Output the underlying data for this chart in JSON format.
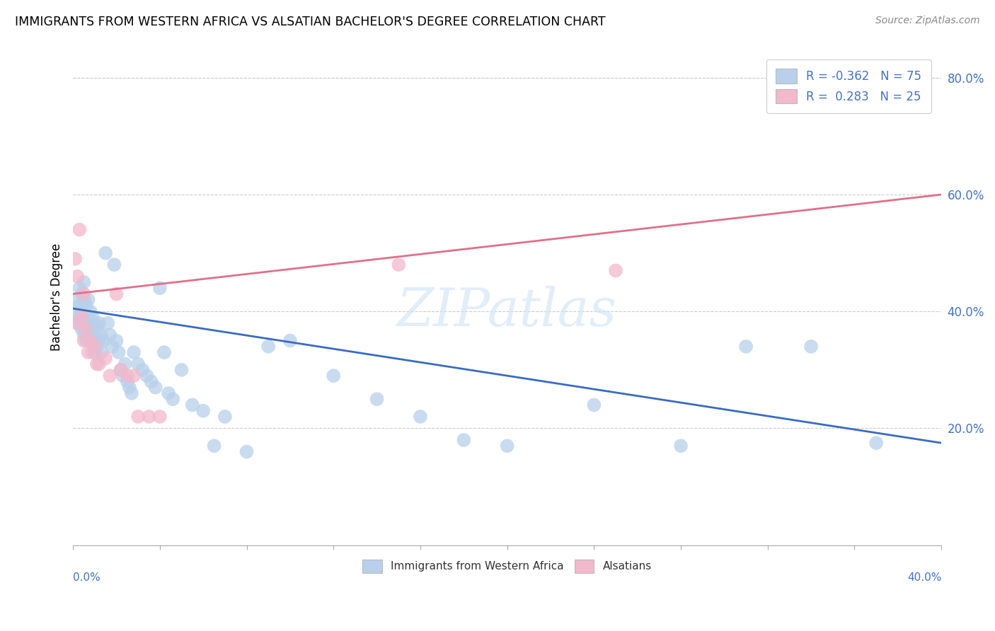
{
  "title": "IMMIGRANTS FROM WESTERN AFRICA VS ALSATIAN BACHELOR'S DEGREE CORRELATION CHART",
  "source": "Source: ZipAtlas.com",
  "ylabel": "Bachelor's Degree",
  "legend_line1": "R = -0.362   N = 75",
  "legend_line2": "R =  0.283   N = 25",
  "blue_color": "#b8d0ea",
  "pink_color": "#f2b8cb",
  "blue_line_color": "#3a6bbf",
  "pink_line_color": "#e0708a",
  "watermark": "ZIPatlas",
  "blue_x": [
    0.001,
    0.002,
    0.002,
    0.003,
    0.003,
    0.003,
    0.004,
    0.004,
    0.004,
    0.005,
    0.005,
    0.005,
    0.005,
    0.006,
    0.006,
    0.006,
    0.007,
    0.007,
    0.007,
    0.008,
    0.008,
    0.008,
    0.009,
    0.009,
    0.01,
    0.01,
    0.01,
    0.011,
    0.011,
    0.012,
    0.012,
    0.013,
    0.013,
    0.014,
    0.015,
    0.016,
    0.017,
    0.018,
    0.019,
    0.02,
    0.021,
    0.022,
    0.023,
    0.024,
    0.025,
    0.026,
    0.027,
    0.028,
    0.03,
    0.032,
    0.034,
    0.036,
    0.038,
    0.04,
    0.042,
    0.044,
    0.046,
    0.05,
    0.055,
    0.06,
    0.065,
    0.07,
    0.08,
    0.09,
    0.1,
    0.12,
    0.14,
    0.16,
    0.18,
    0.2,
    0.24,
    0.28,
    0.31,
    0.34,
    0.37
  ],
  "blue_y": [
    0.4,
    0.42,
    0.38,
    0.44,
    0.41,
    0.39,
    0.43,
    0.4,
    0.37,
    0.45,
    0.42,
    0.39,
    0.36,
    0.41,
    0.38,
    0.35,
    0.42,
    0.39,
    0.36,
    0.4,
    0.38,
    0.35,
    0.39,
    0.36,
    0.38,
    0.35,
    0.33,
    0.37,
    0.34,
    0.38,
    0.35,
    0.36,
    0.33,
    0.35,
    0.5,
    0.38,
    0.36,
    0.34,
    0.48,
    0.35,
    0.33,
    0.3,
    0.29,
    0.31,
    0.28,
    0.27,
    0.26,
    0.33,
    0.31,
    0.3,
    0.29,
    0.28,
    0.27,
    0.44,
    0.33,
    0.26,
    0.25,
    0.3,
    0.24,
    0.23,
    0.17,
    0.22,
    0.16,
    0.34,
    0.35,
    0.29,
    0.25,
    0.22,
    0.18,
    0.17,
    0.24,
    0.17,
    0.34,
    0.34,
    0.175
  ],
  "pink_x": [
    0.001,
    0.002,
    0.002,
    0.003,
    0.004,
    0.005,
    0.005,
    0.006,
    0.007,
    0.008,
    0.009,
    0.01,
    0.011,
    0.012,
    0.015,
    0.017,
    0.02,
    0.022,
    0.025,
    0.028,
    0.03,
    0.035,
    0.04,
    0.15,
    0.25
  ],
  "pink_y": [
    0.49,
    0.46,
    0.38,
    0.54,
    0.39,
    0.43,
    0.35,
    0.37,
    0.33,
    0.35,
    0.33,
    0.34,
    0.31,
    0.31,
    0.32,
    0.29,
    0.43,
    0.3,
    0.29,
    0.29,
    0.22,
    0.22,
    0.22,
    0.48,
    0.47
  ],
  "blue_line_x0": 0.0,
  "blue_line_y0": 0.405,
  "blue_line_x1": 0.4,
  "blue_line_y1": 0.175,
  "pink_line_x0": 0.0,
  "pink_line_y0": 0.43,
  "pink_line_x1": 0.4,
  "pink_line_y1": 0.6,
  "xlim": [
    0.0,
    0.4
  ],
  "ylim": [
    0.0,
    0.85
  ],
  "yticks": [
    0.2,
    0.4,
    0.6,
    0.8
  ],
  "ytick_labels": [
    "20.0%",
    "40.0%",
    "60.0%",
    "80.0%"
  ]
}
